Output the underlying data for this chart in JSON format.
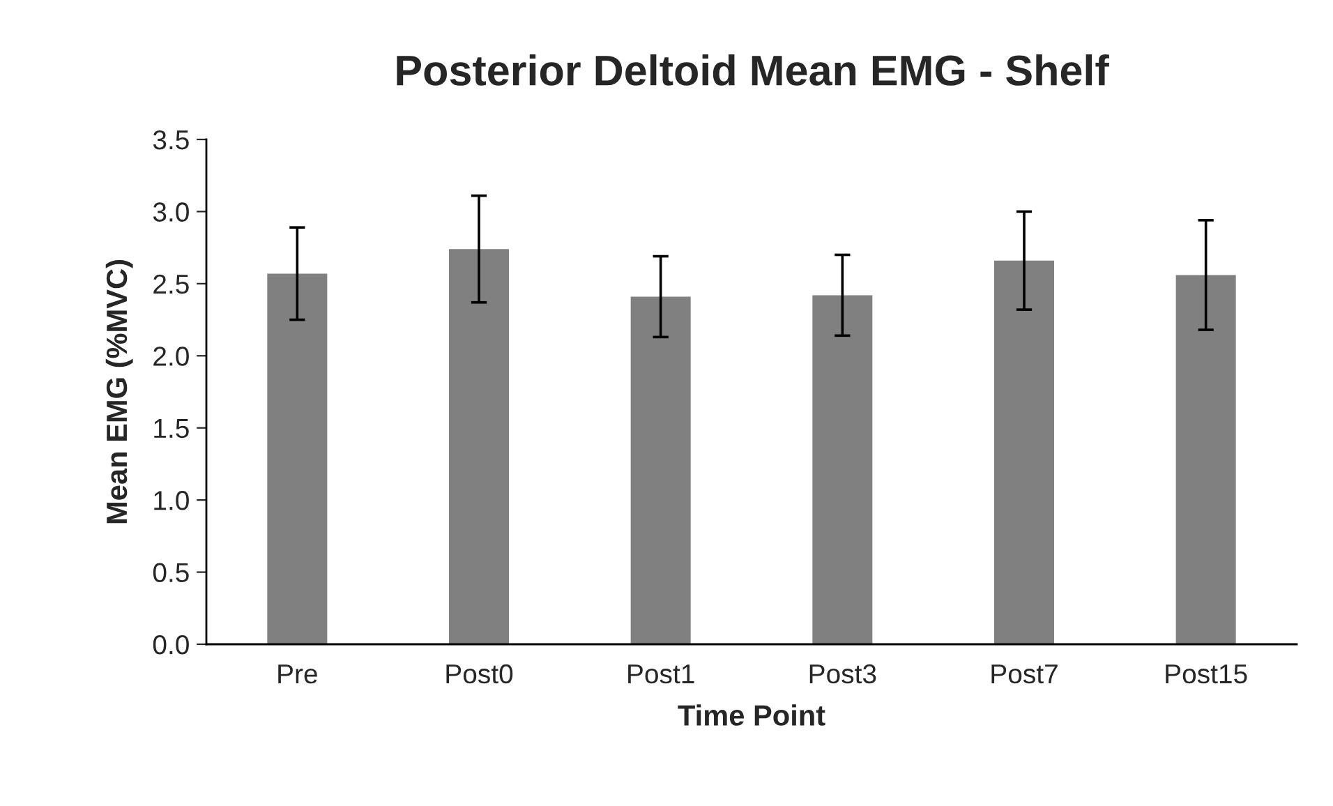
{
  "chart_data": {
    "type": "bar",
    "title": "Posterior Deltoid Mean EMG - Shelf",
    "xlabel": "Time Point",
    "ylabel": "Mean EMG (%MVC)",
    "categories": [
      "Pre",
      "Post0",
      "Post1",
      "Post3",
      "Post7",
      "Post15"
    ],
    "values": [
      2.57,
      2.74,
      2.41,
      2.42,
      2.66,
      2.56
    ],
    "errors": [
      0.32,
      0.37,
      0.28,
      0.28,
      0.34,
      0.38
    ],
    "color": "#808080",
    "ylim": [
      0,
      3.5
    ],
    "yticks": [
      {
        "value": 0,
        "label": "0.0"
      },
      {
        "value": 0.5,
        "label": "0.5"
      },
      {
        "value": 1,
        "label": "1.0"
      },
      {
        "value": 1.5,
        "label": "1.5"
      },
      {
        "value": 2,
        "label": "2.0"
      },
      {
        "value": 2.5,
        "label": "2.5"
      },
      {
        "value": 3,
        "label": "3.0"
      },
      {
        "value": 3.5,
        "label": "3.5"
      }
    ],
    "grid": false,
    "legend": false
  }
}
